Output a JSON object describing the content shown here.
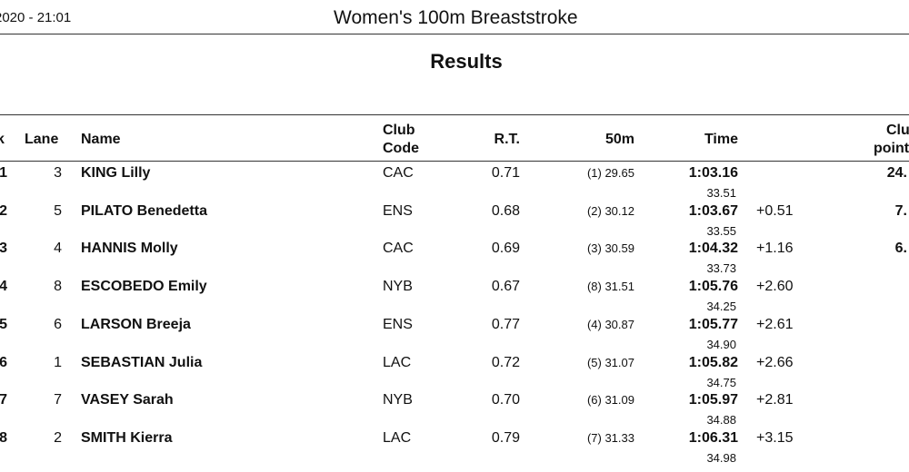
{
  "header": {
    "date_time": "2020 - 21:01",
    "event_title": "Women's 100m Breaststroke",
    "section_title": "Results"
  },
  "columns": {
    "rank": "k",
    "lane": "Lane",
    "name": "Name",
    "club_code_line1": "Club",
    "club_code_line2": "Code",
    "rt": "R.T.",
    "split50": "50m",
    "time": "Time",
    "club_points_line1": "Clu",
    "club_points_line2": "point"
  },
  "rows": [
    {
      "rank": "1",
      "lane": "3",
      "name": "KING Lilly",
      "club": "CAC",
      "rt": "0.71",
      "split50": "(1) 29.65",
      "time": "1:03.16",
      "split2": "33.51",
      "behind": "",
      "points": "24."
    },
    {
      "rank": "2",
      "lane": "5",
      "name": "PILATO Benedetta",
      "club": "ENS",
      "rt": "0.68",
      "split50": "(2) 30.12",
      "time": "1:03.67",
      "split2": "33.55",
      "behind": "+0.51",
      "points": "7."
    },
    {
      "rank": "3",
      "lane": "4",
      "name": "HANNIS Molly",
      "club": "CAC",
      "rt": "0.69",
      "split50": "(3) 30.59",
      "time": "1:04.32",
      "split2": "33.73",
      "behind": "+1.16",
      "points": "6."
    },
    {
      "rank": "4",
      "lane": "8",
      "name": "ESCOBEDO Emily",
      "club": "NYB",
      "rt": "0.67",
      "split50": "(8) 31.51",
      "time": "1:05.76",
      "split2": "34.25",
      "behind": "+2.60",
      "points": ""
    },
    {
      "rank": "5",
      "lane": "6",
      "name": "LARSON Breeja",
      "club": "ENS",
      "rt": "0.77",
      "split50": "(4) 30.87",
      "time": "1:05.77",
      "split2": "34.90",
      "behind": "+2.61",
      "points": ""
    },
    {
      "rank": "6",
      "lane": "1",
      "name": "SEBASTIAN Julia",
      "club": "LAC",
      "rt": "0.72",
      "split50": "(5) 31.07",
      "time": "1:05.82",
      "split2": "34.75",
      "behind": "+2.66",
      "points": ""
    },
    {
      "rank": "7",
      "lane": "7",
      "name": "VASEY Sarah",
      "club": "NYB",
      "rt": "0.70",
      "split50": "(6) 31.09",
      "time": "1:05.97",
      "split2": "34.88",
      "behind": "+2.81",
      "points": ""
    },
    {
      "rank": "8",
      "lane": "2",
      "name": "SMITH Kierra",
      "club": "LAC",
      "rt": "0.79",
      "split50": "(7) 31.33",
      "time": "1:06.31",
      "split2": "34.98",
      "behind": "+3.15",
      "points": ""
    }
  ]
}
